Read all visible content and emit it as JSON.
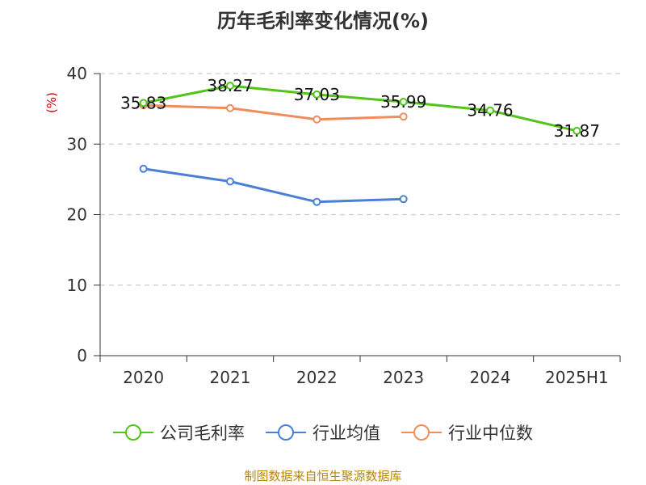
{
  "chart_data": {
    "type": "line",
    "title": "历年毛利率变化情况(%)",
    "ylabel": "(%)",
    "xlabel": "",
    "categories": [
      "2020",
      "2021",
      "2022",
      "2023",
      "2024",
      "2025H1"
    ],
    "ylim": [
      0,
      40
    ],
    "yticks": [
      0,
      10,
      20,
      30,
      40
    ],
    "grid": true,
    "legend_position": "bottom",
    "series": [
      {
        "name": "公司毛利率",
        "color": "#52c41a",
        "values": [
          35.83,
          38.27,
          37.03,
          35.99,
          34.76,
          31.87
        ],
        "labels": [
          "35.83",
          "38.27",
          "37.03",
          "35.99",
          "34.76",
          "31.87"
        ]
      },
      {
        "name": "行业均值",
        "color": "#4a7fd6",
        "values": [
          26.5,
          24.7,
          21.8,
          22.2,
          null,
          null
        ]
      },
      {
        "name": "行业中位数",
        "color": "#f28c5c",
        "values": [
          35.5,
          35.1,
          33.5,
          33.9,
          null,
          null
        ]
      }
    ]
  },
  "source": "制图数据来自恒生聚源数据库"
}
